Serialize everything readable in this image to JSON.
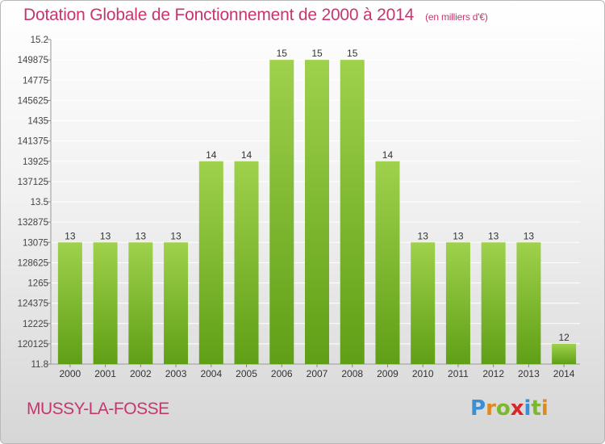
{
  "header": {
    "title": "Dotation Globale de Fonctionnement de 2000 à 2014",
    "unit": "(en milliers d'€)"
  },
  "footer": {
    "commune": "MUSSY-LA-FOSSE",
    "brand": "Proxiti"
  },
  "colors": {
    "title": "#c7356f",
    "bar_top": "#9fd14c",
    "bar_bottom": "#5f9f16",
    "grid": "#ffffff",
    "logo": [
      "#3a8fd6",
      "#e08a1e",
      "#7ab82c",
      "#d9262b",
      "#3a8fd6",
      "#7ab82c",
      "#e08a1e"
    ]
  },
  "chart_data": {
    "type": "bar",
    "categories": [
      "2000",
      "2001",
      "2002",
      "2003",
      "2004",
      "2005",
      "2006",
      "2007",
      "2008",
      "2009",
      "2010",
      "2011",
      "2012",
      "2013",
      "2014"
    ],
    "values": [
      13.075,
      13.075,
      13.075,
      13.075,
      13.925,
      13.925,
      14.9875,
      14.9875,
      14.9875,
      13.925,
      13.075,
      13.075,
      13.075,
      13.075,
      12.0125
    ],
    "data_labels": [
      "13",
      "13",
      "13",
      "13",
      "14",
      "14",
      "15",
      "15",
      "15",
      "14",
      "13",
      "13",
      "13",
      "13",
      "12"
    ],
    "yticks": [
      "15.2",
      "14.9875",
      "14.775",
      "14.5625",
      "14.35",
      "14.1375",
      "13.925",
      "13.7125",
      "13.5",
      "13.2875",
      "13.075",
      "12.8625",
      "12.65",
      "12.4375",
      "12.225",
      "12.0125",
      "11.8"
    ],
    "ytick_labels": [
      "15.2",
      "149875",
      "14775",
      "145625",
      "1435",
      "141375",
      "13925",
      "137125",
      "13.5",
      "132875",
      "13075",
      "128625",
      "1265",
      "124375",
      "12225",
      "120125",
      "11.8"
    ],
    "ylim": [
      11.8,
      15.2
    ],
    "grid": true
  }
}
